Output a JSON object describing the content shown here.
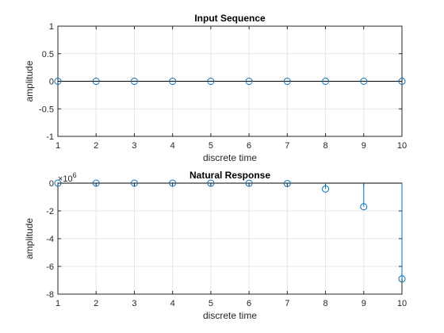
{
  "chart_data": [
    {
      "type": "stem",
      "title": "Input Sequence",
      "xlabel": "discrete time",
      "ylabel": "amplitude",
      "xlim": [
        1,
        10
      ],
      "ylim": [
        -1,
        1
      ],
      "xticks": [
        1,
        2,
        3,
        4,
        5,
        6,
        7,
        8,
        9,
        10
      ],
      "xtick_labels": [
        "1",
        "2",
        "3",
        "4",
        "5",
        "6",
        "7",
        "8",
        "9",
        "10"
      ],
      "yticks": [
        -1,
        -0.5,
        0,
        0.5,
        1
      ],
      "ytick_labels": [
        "-1",
        "-0.5",
        "0",
        "0.5",
        "1"
      ],
      "grid": true,
      "baseline": 0,
      "exponent": "",
      "x": [
        1,
        2,
        3,
        4,
        5,
        6,
        7,
        8,
        9,
        10
      ],
      "y": [
        0,
        0,
        0,
        0,
        0,
        0,
        0,
        0,
        0,
        0
      ],
      "color": "#0072bd"
    },
    {
      "type": "stem",
      "title": "Natural Response",
      "xlabel": "discrete time",
      "ylabel": "amplitude",
      "xlim": [
        1,
        10
      ],
      "ylim": [
        -8,
        0
      ],
      "xticks": [
        1,
        2,
        3,
        4,
        5,
        6,
        7,
        8,
        9,
        10
      ],
      "xtick_labels": [
        "1",
        "2",
        "3",
        "4",
        "5",
        "6",
        "7",
        "8",
        "9",
        "10"
      ],
      "yticks": [
        -8,
        -6,
        -4,
        -2,
        0
      ],
      "ytick_labels": [
        "-8",
        "-6",
        "-4",
        "-2",
        "0"
      ],
      "grid": true,
      "baseline": 0,
      "exponent": "10^6",
      "x": [
        1,
        2,
        3,
        4,
        5,
        6,
        7,
        8,
        9,
        10
      ],
      "y": [
        0,
        0,
        0,
        0,
        -0.002,
        -0.006,
        -0.025,
        -0.42,
        -1.7,
        -6.9
      ],
      "color": "#0072bd"
    }
  ]
}
